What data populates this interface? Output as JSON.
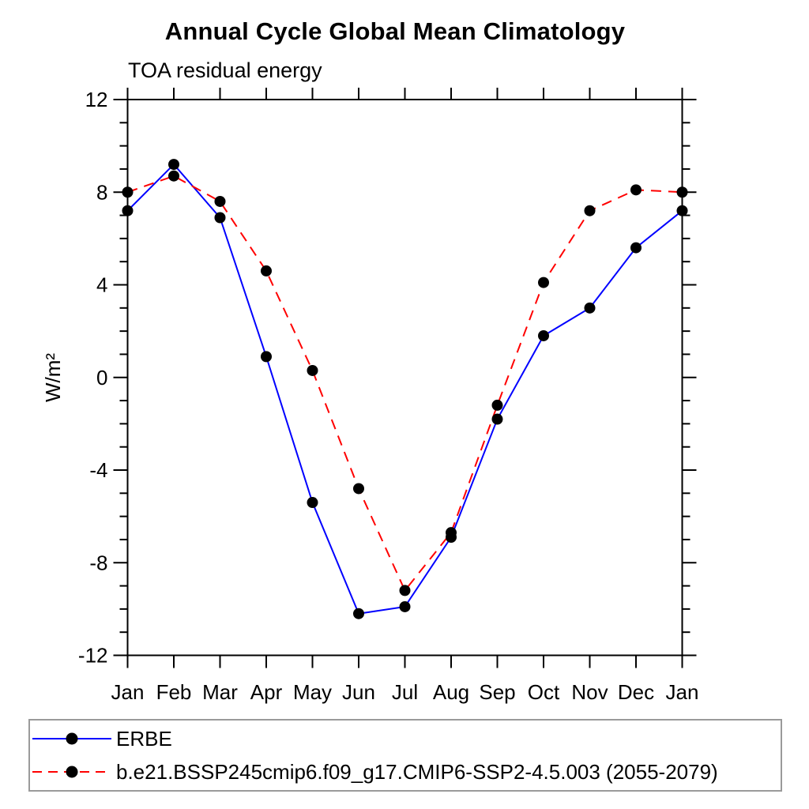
{
  "title": "Annual Cycle Global Mean Climatology",
  "subtitle": "TOA residual energy",
  "chart_data": {
    "type": "line",
    "x_categories": [
      "Jan",
      "Feb",
      "Mar",
      "Apr",
      "May",
      "Jun",
      "Jul",
      "Aug",
      "Sep",
      "Oct",
      "Nov",
      "Dec",
      "Jan"
    ],
    "xlabel": "",
    "ylabel": "W/m²",
    "ylim": [
      -12,
      12
    ],
    "y_major_ticks": [
      -12,
      -8,
      -4,
      0,
      4,
      8,
      12
    ],
    "y_minor_step": 1,
    "grid": false,
    "legend_position": "bottom-left-box",
    "axis_color": "#000000",
    "marker_color": "#000000",
    "series": [
      {
        "name": "ERBE",
        "color": "#0000ff",
        "style": "solid",
        "marker": "filled-circle",
        "values": [
          7.2,
          9.2,
          6.9,
          0.9,
          -5.4,
          -10.2,
          -9.9,
          -6.9,
          -1.8,
          1.8,
          3.0,
          5.6,
          7.2
        ]
      },
      {
        "name": "b.e21.BSSP245cmip6.f09_g17.CMIP6-SSP2-4.5.003 (2055-2079)",
        "color": "#ff0000",
        "style": "dashed",
        "marker": "filled-circle",
        "values": [
          8.0,
          8.7,
          7.6,
          4.6,
          0.3,
          -4.8,
          -9.2,
          -6.7,
          -1.2,
          4.1,
          7.2,
          8.1,
          8.0
        ]
      }
    ]
  }
}
